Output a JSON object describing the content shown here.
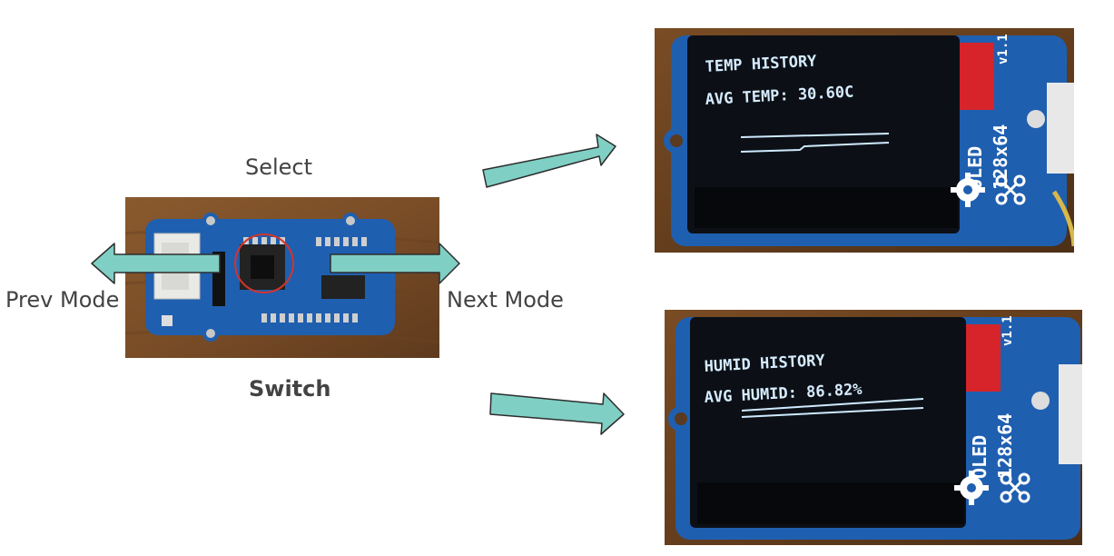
{
  "labels": {
    "select": "Select",
    "prev_mode": "Prev Mode",
    "next_mode": "Next Mode",
    "switch": "Switch"
  },
  "oled_top": {
    "line1": "TEMP HISTORY",
    "line2": "AVG TEMP: 30.60C",
    "board_version": "v1.1",
    "board_name": "OLED",
    "board_res": "128x64"
  },
  "oled_bottom": {
    "line1": "HUMID HISTORY",
    "line2": "AVG HUMID: 86.82%",
    "board_version": "v1.1",
    "board_name": "OLED",
    "board_res": "128x64"
  },
  "colors": {
    "arrow_fill": "#7fcfc4",
    "arrow_stroke": "#2d2d2d",
    "board_blue": "#1f5fb0",
    "screen_dark": "#0c1016",
    "oled_text": "#d6ecff",
    "label_text": "#434343"
  },
  "icons": [
    "seeed-gear-logo",
    "grove-node-logo",
    "joystick-switch",
    "red-circle-highlight"
  ]
}
